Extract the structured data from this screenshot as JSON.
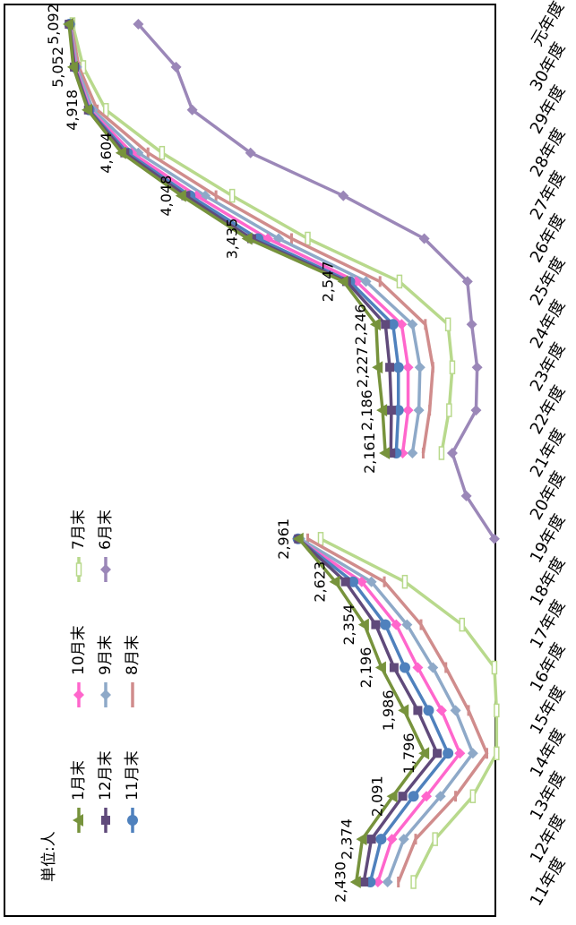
{
  "chart_data": {
    "type": "line",
    "orientation": "rotated-90-clockwise",
    "unit_label": "単位:人",
    "categories": [
      "11年度",
      "12年度",
      "13年度",
      "14年度",
      "15年度",
      "16年度",
      "17年度",
      "18年度",
      "19年度",
      "20年度",
      "21年度",
      "22年度",
      "23年度",
      "24年度",
      "25年度",
      "26年度",
      "27年度",
      "28年度",
      "29年度",
      "30年度",
      "元年度"
    ],
    "ylim": [
      1000,
      5300
    ],
    "grid": false,
    "legend_position": "bottom-left",
    "series": [
      {
        "name": "1月末",
        "color": "#77933C",
        "marker": "triangle",
        "labels": true,
        "values": [
          2430,
          2374,
          2091,
          1796,
          1986,
          2196,
          2354,
          2623,
          2961,
          null,
          2161,
          2186,
          2227,
          2246,
          2547,
          3435,
          4048,
          4604,
          4918,
          5052,
          5092
        ]
      },
      {
        "name": "12月末",
        "color": "#604A7B",
        "marker": "square",
        "values": [
          2360,
          2290,
          2000,
          1680,
          1860,
          2080,
          2250,
          2530,
          2965,
          null,
          2110,
          2105,
          2120,
          2160,
          2520,
          3400,
          4010,
          4575,
          4912,
          5042,
          5090
        ]
      },
      {
        "name": "11月末",
        "color": "#4F81BD",
        "marker": "circle",
        "values": [
          2300,
          2200,
          1900,
          1580,
          1760,
          1980,
          2160,
          2460,
          2970,
          null,
          2060,
          2040,
          2040,
          2090,
          2490,
          3340,
          3970,
          4550,
          4905,
          5040,
          5088
        ]
      },
      {
        "name": "10月末",
        "color": "#FF66CC",
        "marker": "diamond",
        "values": [
          2230,
          2100,
          1780,
          1470,
          1640,
          1860,
          2060,
          2380,
          2975,
          null,
          2000,
          1950,
          1950,
          2010,
          2430,
          3250,
          3910,
          4510,
          4895,
          5033,
          5085
        ]
      },
      {
        "name": "9月末",
        "color": "#8EA9C8",
        "marker": "diamond",
        "values": [
          2140,
          1990,
          1650,
          1350,
          1510,
          1720,
          1960,
          2290,
          2950,
          null,
          1910,
          1850,
          1840,
          1910,
          2340,
          3150,
          3830,
          4450,
          4870,
          5020,
          5080
        ]
      },
      {
        "name": "8月末",
        "color": "#D08C8C",
        "marker": "dash",
        "values": [
          2040,
          1880,
          1510,
          1220,
          1390,
          1600,
          1830,
          2170,
          2880,
          null,
          1810,
          1750,
          1720,
          1790,
          2210,
          3030,
          3730,
          4360,
          4830,
          5000,
          5075
        ]
      },
      {
        "name": "7月末",
        "color": "#B8D98C",
        "marker": "bar",
        "values": [
          1900,
          1700,
          1350,
          1130,
          1130,
          1150,
          1450,
          1980,
          2760,
          null,
          1640,
          1570,
          1540,
          1580,
          2030,
          2880,
          3580,
          4230,
          4750,
          4960,
          5060
        ]
      },
      {
        "name": "6月末",
        "color": "#9B87B8",
        "marker": "diamond",
        "values": [
          null,
          null,
          null,
          null,
          null,
          null,
          null,
          null,
          1150,
          1410,
          1540,
          1320,
          1310,
          1360,
          1400,
          1800,
          2550,
          3410,
          3950,
          4100,
          4450
        ]
      }
    ],
    "legend_rows": [
      [
        "1月末",
        "12月末",
        "11月末"
      ],
      [
        "10月末",
        "9月末",
        "8月末"
      ],
      [
        "7月末",
        "6月末"
      ]
    ]
  }
}
